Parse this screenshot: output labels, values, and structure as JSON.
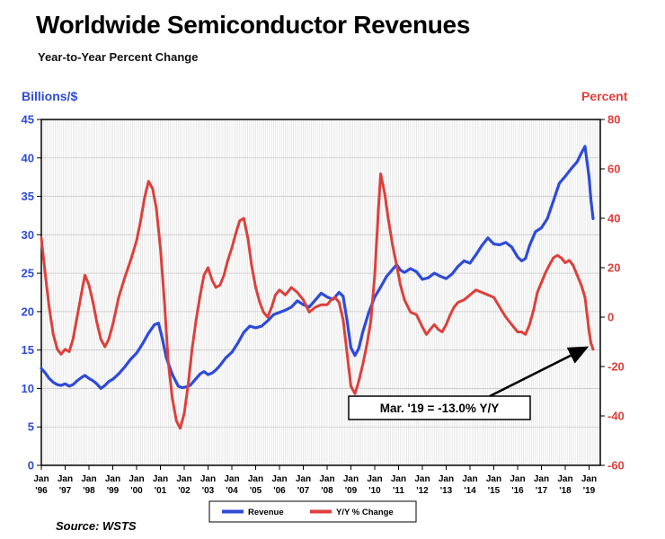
{
  "page": {
    "source": "Source: WSTS"
  },
  "chart": {
    "left_axis_title": "Billions/$",
    "right_axis_title": "Percent",
    "annotation_label": "Mar. '19 = -13.0% Y/Y",
    "legend": {
      "revenue": "Revenue",
      "yoy": "Y/Y % Change"
    }
  },
  "colors": {
    "revenue_blue": "#2f4bd7",
    "yoy_red": "#dd403c",
    "grid_light": "#d9d9d9",
    "grid_h": "#c9c9c9",
    "axis_black": "#000000"
  },
  "chart_data": {
    "type": "line",
    "title": "Worldwide Semiconductor Revenues",
    "subtitle": "Year-to-Year Percent Change",
    "left_axis_label": "Billions/$",
    "right_axis_label": "Percent",
    "left_ylim": [
      0,
      45
    ],
    "right_ylim": [
      -60,
      80
    ],
    "x_range": [
      1996.0,
      2019.47
    ],
    "left_ticks": [
      45,
      40,
      35,
      30,
      25,
      20,
      15,
      10,
      5,
      0
    ],
    "right_ticks": [
      80,
      60,
      40,
      20,
      0,
      -20,
      -40,
      -60
    ],
    "x_ticks": [
      [
        "Jan",
        "'96"
      ],
      [
        "Jan",
        "'97"
      ],
      [
        "Jan",
        "'98"
      ],
      [
        "Jan",
        "'99"
      ],
      [
        "Jan",
        "'00"
      ],
      [
        "Jan",
        "'01"
      ],
      [
        "Jan",
        "'02"
      ],
      [
        "Jan",
        "'03"
      ],
      [
        "Jan",
        "'04"
      ],
      [
        "Jan",
        "'05"
      ],
      [
        "Jan",
        "'06"
      ],
      [
        "Jan",
        "'07"
      ],
      [
        "Jan",
        "'08"
      ],
      [
        "Jan",
        "'09"
      ],
      [
        "Jan",
        "'10"
      ],
      [
        "Jan",
        "'11"
      ],
      [
        "Jan",
        "'12"
      ],
      [
        "Jan",
        "'13"
      ],
      [
        "Jan",
        "'14"
      ],
      [
        "Jan",
        "'15"
      ],
      [
        "Jan",
        "'16"
      ],
      [
        "Jan",
        "'17"
      ],
      [
        "Jan",
        "'18"
      ],
      [
        "Jan",
        "'19"
      ]
    ],
    "legend_position": "bottom-center",
    "grid": true,
    "annotation": {
      "text": "Mar. '19 = -13.0% Y/Y",
      "points_to": {
        "x": 2019.17,
        "y": -13.0
      }
    },
    "series": [
      {
        "name": "Revenue",
        "axis": "left",
        "color": "#2f4bd7",
        "unit": "billions_usd_monthly",
        "points": [
          [
            1996.0,
            12.6
          ],
          [
            1996.17,
            12.0
          ],
          [
            1996.33,
            11.3
          ],
          [
            1996.5,
            10.8
          ],
          [
            1996.67,
            10.5
          ],
          [
            1996.83,
            10.4
          ],
          [
            1997.0,
            10.6
          ],
          [
            1997.17,
            10.3
          ],
          [
            1997.33,
            10.5
          ],
          [
            1997.5,
            11.0
          ],
          [
            1997.67,
            11.4
          ],
          [
            1997.83,
            11.7
          ],
          [
            1998.0,
            11.3
          ],
          [
            1998.17,
            11.0
          ],
          [
            1998.33,
            10.6
          ],
          [
            1998.5,
            10.0
          ],
          [
            1998.67,
            10.4
          ],
          [
            1998.83,
            10.9
          ],
          [
            1999.0,
            11.2
          ],
          [
            1999.25,
            11.9
          ],
          [
            1999.5,
            12.8
          ],
          [
            1999.75,
            13.8
          ],
          [
            2000.0,
            14.6
          ],
          [
            2000.25,
            15.8
          ],
          [
            2000.5,
            17.2
          ],
          [
            2000.75,
            18.3
          ],
          [
            2000.92,
            18.5
          ],
          [
            2001.08,
            16.5
          ],
          [
            2001.25,
            14.0
          ],
          [
            2001.5,
            11.8
          ],
          [
            2001.75,
            10.3
          ],
          [
            2001.92,
            10.1
          ],
          [
            2002.08,
            10.2
          ],
          [
            2002.25,
            10.4
          ],
          [
            2002.5,
            11.3
          ],
          [
            2002.67,
            11.9
          ],
          [
            2002.83,
            12.2
          ],
          [
            2003.0,
            11.8
          ],
          [
            2003.17,
            12.0
          ],
          [
            2003.33,
            12.4
          ],
          [
            2003.5,
            13.0
          ],
          [
            2003.75,
            14.0
          ],
          [
            2004.0,
            14.7
          ],
          [
            2004.25,
            15.9
          ],
          [
            2004.5,
            17.3
          ],
          [
            2004.75,
            18.1
          ],
          [
            2005.0,
            17.9
          ],
          [
            2005.25,
            18.1
          ],
          [
            2005.5,
            18.8
          ],
          [
            2005.75,
            19.6
          ],
          [
            2006.0,
            19.9
          ],
          [
            2006.25,
            20.2
          ],
          [
            2006.5,
            20.6
          ],
          [
            2006.75,
            21.4
          ],
          [
            2007.0,
            20.9
          ],
          [
            2007.25,
            20.6
          ],
          [
            2007.5,
            21.5
          ],
          [
            2007.75,
            22.4
          ],
          [
            2008.0,
            21.9
          ],
          [
            2008.25,
            21.6
          ],
          [
            2008.5,
            22.5
          ],
          [
            2008.67,
            22.0
          ],
          [
            2008.83,
            19.0
          ],
          [
            2009.0,
            15.3
          ],
          [
            2009.17,
            14.3
          ],
          [
            2009.33,
            15.2
          ],
          [
            2009.5,
            17.4
          ],
          [
            2009.75,
            19.9
          ],
          [
            2010.0,
            21.9
          ],
          [
            2010.25,
            23.2
          ],
          [
            2010.5,
            24.6
          ],
          [
            2010.75,
            25.5
          ],
          [
            2010.92,
            26.1
          ],
          [
            2011.08,
            25.4
          ],
          [
            2011.25,
            25.1
          ],
          [
            2011.5,
            25.6
          ],
          [
            2011.75,
            25.2
          ],
          [
            2012.0,
            24.2
          ],
          [
            2012.25,
            24.4
          ],
          [
            2012.5,
            25.0
          ],
          [
            2012.75,
            24.6
          ],
          [
            2013.0,
            24.3
          ],
          [
            2013.25,
            24.9
          ],
          [
            2013.5,
            25.9
          ],
          [
            2013.75,
            26.6
          ],
          [
            2014.0,
            26.3
          ],
          [
            2014.25,
            27.4
          ],
          [
            2014.5,
            28.6
          ],
          [
            2014.75,
            29.6
          ],
          [
            2015.0,
            28.8
          ],
          [
            2015.25,
            28.7
          ],
          [
            2015.5,
            29.0
          ],
          [
            2015.75,
            28.4
          ],
          [
            2016.0,
            27.1
          ],
          [
            2016.17,
            26.6
          ],
          [
            2016.33,
            26.9
          ],
          [
            2016.5,
            28.6
          ],
          [
            2016.75,
            30.4
          ],
          [
            2017.0,
            30.9
          ],
          [
            2017.25,
            32.1
          ],
          [
            2017.5,
            34.4
          ],
          [
            2017.75,
            36.7
          ],
          [
            2018.0,
            37.6
          ],
          [
            2018.25,
            38.6
          ],
          [
            2018.5,
            39.5
          ],
          [
            2018.67,
            40.6
          ],
          [
            2018.83,
            41.5
          ],
          [
            2019.0,
            37.5
          ],
          [
            2019.08,
            34.5
          ],
          [
            2019.17,
            32.1
          ]
        ]
      },
      {
        "name": "Y/Y % Change",
        "axis": "right",
        "color": "#dd403c",
        "unit": "percent",
        "points": [
          [
            1996.0,
            32
          ],
          [
            1996.17,
            17
          ],
          [
            1996.33,
            4
          ],
          [
            1996.5,
            -7
          ],
          [
            1996.67,
            -13
          ],
          [
            1996.83,
            -15
          ],
          [
            1997.0,
            -13
          ],
          [
            1997.17,
            -14
          ],
          [
            1997.33,
            -9
          ],
          [
            1997.5,
            0
          ],
          [
            1997.67,
            9
          ],
          [
            1997.83,
            17
          ],
          [
            1998.0,
            13
          ],
          [
            1998.17,
            6
          ],
          [
            1998.33,
            -2
          ],
          [
            1998.5,
            -9
          ],
          [
            1998.67,
            -12
          ],
          [
            1998.83,
            -9
          ],
          [
            1999.0,
            -3
          ],
          [
            1999.25,
            8
          ],
          [
            1999.5,
            16
          ],
          [
            1999.75,
            23
          ],
          [
            2000.0,
            31
          ],
          [
            2000.17,
            39
          ],
          [
            2000.33,
            48
          ],
          [
            2000.5,
            55
          ],
          [
            2000.67,
            52
          ],
          [
            2000.83,
            44
          ],
          [
            2001.0,
            28
          ],
          [
            2001.17,
            6
          ],
          [
            2001.33,
            -18
          ],
          [
            2001.5,
            -33
          ],
          [
            2001.67,
            -42
          ],
          [
            2001.83,
            -45
          ],
          [
            2002.0,
            -39
          ],
          [
            2002.17,
            -27
          ],
          [
            2002.33,
            -13
          ],
          [
            2002.5,
            -1
          ],
          [
            2002.67,
            9
          ],
          [
            2002.83,
            17
          ],
          [
            2003.0,
            20
          ],
          [
            2003.17,
            15
          ],
          [
            2003.33,
            12
          ],
          [
            2003.5,
            13
          ],
          [
            2003.67,
            17
          ],
          [
            2003.83,
            23
          ],
          [
            2004.0,
            28
          ],
          [
            2004.17,
            34
          ],
          [
            2004.33,
            39
          ],
          [
            2004.5,
            40
          ],
          [
            2004.67,
            32
          ],
          [
            2004.83,
            21
          ],
          [
            2005.0,
            12
          ],
          [
            2005.17,
            6
          ],
          [
            2005.33,
            2
          ],
          [
            2005.5,
            0
          ],
          [
            2005.67,
            4
          ],
          [
            2005.83,
            9
          ],
          [
            2006.0,
            11
          ],
          [
            2006.25,
            9
          ],
          [
            2006.5,
            12
          ],
          [
            2006.75,
            10
          ],
          [
            2007.0,
            7
          ],
          [
            2007.25,
            2
          ],
          [
            2007.5,
            4
          ],
          [
            2007.75,
            5
          ],
          [
            2008.0,
            5
          ],
          [
            2008.17,
            7
          ],
          [
            2008.33,
            8
          ],
          [
            2008.5,
            6
          ],
          [
            2008.67,
            -1
          ],
          [
            2008.83,
            -14
          ],
          [
            2009.0,
            -28
          ],
          [
            2009.17,
            -31
          ],
          [
            2009.33,
            -26
          ],
          [
            2009.5,
            -19
          ],
          [
            2009.67,
            -11
          ],
          [
            2009.83,
            -2
          ],
          [
            2010.0,
            17
          ],
          [
            2010.17,
            46
          ],
          [
            2010.25,
            58
          ],
          [
            2010.42,
            50
          ],
          [
            2010.58,
            39
          ],
          [
            2010.75,
            29
          ],
          [
            2010.92,
            21
          ],
          [
            2011.08,
            13
          ],
          [
            2011.25,
            7
          ],
          [
            2011.5,
            2
          ],
          [
            2011.75,
            1
          ],
          [
            2012.0,
            -4
          ],
          [
            2012.17,
            -7
          ],
          [
            2012.33,
            -5
          ],
          [
            2012.5,
            -3
          ],
          [
            2012.67,
            -5
          ],
          [
            2012.83,
            -6
          ],
          [
            2013.0,
            -3
          ],
          [
            2013.17,
            1
          ],
          [
            2013.33,
            4
          ],
          [
            2013.5,
            6
          ],
          [
            2013.75,
            7
          ],
          [
            2014.0,
            9
          ],
          [
            2014.25,
            11
          ],
          [
            2014.5,
            10
          ],
          [
            2014.75,
            9
          ],
          [
            2015.0,
            8
          ],
          [
            2015.25,
            4
          ],
          [
            2015.5,
            0
          ],
          [
            2015.75,
            -3
          ],
          [
            2016.0,
            -6
          ],
          [
            2016.17,
            -6
          ],
          [
            2016.33,
            -7
          ],
          [
            2016.5,
            -3
          ],
          [
            2016.67,
            3
          ],
          [
            2016.83,
            10
          ],
          [
            2017.0,
            14
          ],
          [
            2017.17,
            18
          ],
          [
            2017.33,
            21
          ],
          [
            2017.5,
            24
          ],
          [
            2017.67,
            25
          ],
          [
            2017.83,
            24
          ],
          [
            2018.0,
            22
          ],
          [
            2018.17,
            23
          ],
          [
            2018.33,
            21
          ],
          [
            2018.5,
            17
          ],
          [
            2018.67,
            13
          ],
          [
            2018.83,
            8
          ],
          [
            2019.0,
            -5.7
          ],
          [
            2019.08,
            -10.6
          ],
          [
            2019.17,
            -13.0
          ]
        ]
      }
    ]
  }
}
